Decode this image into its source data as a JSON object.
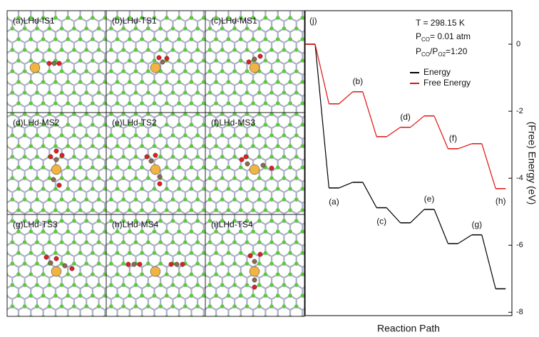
{
  "panels": [
    "(a)LHd-IS1",
    "(b)LHd-TS1",
    "(c)LHd-MS1",
    "(d)LHd-MS2",
    "(e)LHd-TS2",
    "(f)LHd-MS3",
    "(g)LHd-TS3",
    "(h)LHd-MS4",
    "(i)LHd-TS4"
  ],
  "chart_data": {
    "type": "step",
    "panel_label": "(j)",
    "xlabel": "Reaction Path",
    "ylabel": "(Free) Energy (eV)",
    "categories": [
      null,
      null,
      null,
      null,
      null,
      null,
      null,
      null,
      null
    ],
    "series": [
      {
        "name": "Energy",
        "color": "#000000",
        "values": [
          0,
          -4.29,
          -4.12,
          -4.88,
          -5.33,
          -4.93,
          -5.95,
          -5.69,
          -7.3
        ],
        "point_labels": [
          null,
          "(a)",
          null,
          "(c)",
          null,
          "(e)",
          null,
          "(g)",
          null
        ]
      },
      {
        "name": "Free Energy",
        "color": "#e01010",
        "values": [
          0,
          -1.78,
          -1.42,
          -2.76,
          -2.48,
          -2.14,
          -3.12,
          -2.97,
          -4.31
        ],
        "point_labels": [
          null,
          null,
          "(b)",
          null,
          "(d)",
          null,
          "(f)",
          null,
          "(h)"
        ]
      }
    ],
    "conditions": [
      [
        "T = 298.15 K"
      ],
      [
        "P",
        "CO",
        "= 0.01 atm"
      ],
      [
        "P",
        "CO",
        "/P",
        "O2",
        "=1:20"
      ]
    ],
    "ylim": [
      -8.1,
      1
    ],
    "yticks": [
      0,
      -2,
      -4,
      -6,
      -8
    ],
    "legend": "upper right"
  }
}
